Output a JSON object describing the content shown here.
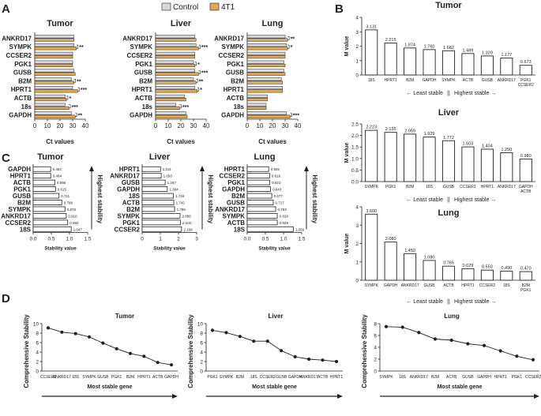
{
  "legend": {
    "items": [
      {
        "label": "Control",
        "color": "#d9d9d9"
      },
      {
        "label": "4T1",
        "color": "#e0a85c"
      }
    ]
  },
  "colors": {
    "control": "#d9d9d9",
    "t4": "#e0a85c",
    "ink": "#222222"
  },
  "panels": {
    "A": "A",
    "B": "B",
    "C": "C",
    "D": "D"
  },
  "chart_data": [
    {
      "id": "A",
      "type": "bar",
      "orientation": "horizontal",
      "genes": [
        "ANKRD17",
        "SYMPK",
        "CCSER2",
        "PGK1",
        "GUSB",
        "B2M",
        "HPRT1",
        "ACTB",
        "18s",
        "GAPDH"
      ],
      "xlabel": "Ct values",
      "xlim": [
        0,
        40
      ],
      "xticks": [
        "0",
        "10",
        "20",
        "30",
        "40"
      ],
      "subplots": [
        {
          "title": "Tumor",
          "control": [
            31,
            31,
            30,
            30,
            31,
            29,
            30,
            24,
            24,
            29
          ],
          "t4": [
            31,
            33,
            30,
            30,
            32,
            31,
            34,
            25,
            27,
            32
          ],
          "sig": [
            "",
            "**",
            "",
            "",
            "",
            "**",
            "***",
            "*",
            "***",
            "**"
          ]
        },
        {
          "title": "Liver",
          "control": [
            31,
            32,
            31,
            30,
            31,
            30,
            31,
            23,
            16,
            24
          ],
          "t4": [
            32,
            34,
            31,
            31,
            34,
            32,
            33,
            24,
            19,
            25
          ],
          "sig": [
            "",
            "***",
            "",
            "*",
            "***",
            "**",
            "*",
            "",
            "***",
            ""
          ]
        },
        {
          "title": "Lung",
          "control": [
            30,
            31,
            30,
            29,
            29,
            27,
            28,
            16,
            15,
            31
          ],
          "t4": [
            32,
            32,
            30,
            30,
            30,
            28,
            28,
            16,
            15,
            34
          ],
          "sig": [
            "**",
            "*",
            "",
            "",
            "",
            "",
            "",
            "",
            "",
            "***"
          ]
        }
      ]
    },
    {
      "id": "B",
      "type": "bar",
      "ylabel": "M value",
      "footer": {
        "left": "← Least stable",
        "sep": "||",
        "right": "Highest stable →"
      },
      "subplots": [
        {
          "title": "Tumor",
          "categories": [
            "18S",
            "HPRT1",
            "B2M",
            "GAPDH",
            "SYMPK",
            "ACTB",
            "GUSB",
            "ANKRD17",
            "PGK1\nCCSER2"
          ],
          "values": [
            3.131,
            2.215,
            1.874,
            1.76,
            1.682,
            1.489,
            1.32,
            1.177,
            0.673
          ],
          "labels": [
            "3.131",
            "2.215",
            "1.874",
            "1.760",
            "1.682",
            "1.489",
            "1.320",
            "1.177",
            "0.673"
          ],
          "ylim": [
            0,
            4
          ],
          "yticks": [
            "0",
            "1",
            "2",
            "3",
            "4"
          ]
        },
        {
          "title": "Liver",
          "categories": [
            "SYMPK",
            "PGK1",
            "B2M",
            "18S",
            "GUSB",
            "CCSER2",
            "HPRT1",
            "ANKRD17",
            "GAPDH\nACTB"
          ],
          "values": [
            2.223,
            2.135,
            2.059,
            1.929,
            1.772,
            1.503,
            1.404,
            1.25,
            0.98
          ],
          "labels": [
            "2.223",
            "2.135",
            "2.059",
            "1.929",
            "1.772",
            "1.503",
            "1.404",
            "1.250",
            "0.980"
          ],
          "ylim": [
            0,
            2.5
          ],
          "yticks": [
            "0.0",
            "0.5",
            "1.0",
            "1.5",
            "2.0",
            "2.5"
          ]
        },
        {
          "title": "Lung",
          "categories": [
            "SYMPK",
            "GAPDH",
            "ANKRD17",
            "GUSB",
            "ACTB",
            "HPRT1",
            "CCSER2",
            "18S",
            "B2M\nPGK1"
          ],
          "values": [
            3.6,
            2.08,
            1.45,
            1.08,
            0.765,
            0.629,
            0.55,
            0.49,
            0.47
          ],
          "labels": [
            "3.600",
            "2.080",
            "1.450",
            "1.080",
            "0.765",
            "0.629",
            "0.550",
            "0.490",
            "0.470"
          ],
          "ylim": [
            0,
            4
          ],
          "yticks": [
            "0",
            "1",
            "2",
            "3",
            "4"
          ]
        }
      ]
    },
    {
      "id": "C",
      "type": "bar",
      "orientation": "horizontal",
      "xlabel": "Stability value",
      "arrow_label": "Highest stability",
      "subplots": [
        {
          "title": "Tumor",
          "categories": [
            "GAPDH",
            "HPRT1",
            "ACTB",
            "PGK1",
            "GUSB",
            "B2M",
            "SYMPK",
            "ANKRD17",
            "CCSER2",
            "18S"
          ],
          "values": [
            0.482,
            0.484,
            0.595,
            0.615,
            0.711,
            0.788,
            0.876,
            0.91,
            0.95,
            1.047
          ],
          "labels": [
            "0.482",
            "0.484",
            "0.595",
            "0.615",
            "0.711",
            "0.788",
            "0.876",
            "0.910",
            "0.950",
            "1.047"
          ],
          "xlim": [
            0,
            1.5
          ],
          "xticks": [
            "0.0",
            "0.5",
            "1.0",
            "1.5"
          ]
        },
        {
          "title": "Liver",
          "categories": [
            "HPRT1",
            "ANKRD17",
            "GUSB",
            "GAPDH",
            "18S",
            "ACTB",
            "B2M",
            "SYMPK",
            "PGK1",
            "CCSER2"
          ],
          "values": [
            1.011,
            1.05,
            1.267,
            1.384,
            1.716,
            1.742,
            1.786,
            2.088,
            2.102,
            2.168
          ],
          "labels": [
            "1.011",
            "1.050",
            "1.267",
            "1.384",
            "1.716",
            "1.742",
            "1.786",
            "2.088",
            "2.102",
            "2.168"
          ],
          "xlim": [
            0,
            3
          ],
          "xticks": [
            "0",
            "1",
            "2",
            "3"
          ]
        },
        {
          "title": "Lung",
          "categories": [
            "HPRT1",
            "CCSER2",
            "PGK1",
            "GAPDH",
            "B2M",
            "GUSB",
            "ANKRD17",
            "SYMPK",
            "ACTB",
            "18S"
          ],
          "values": [
            0.592,
            0.616,
            0.621,
            0.643,
            0.677,
            0.717,
            0.783,
            0.828,
            0.829,
            1.269
          ],
          "labels": [
            "0.592",
            "0.616",
            "0.621",
            "0.643",
            "0.677",
            "0.717",
            "0.783",
            "0.828",
            "0.829",
            "1.269"
          ],
          "xlim": [
            0,
            1.5
          ],
          "xticks": [
            "0.0",
            "0.5",
            "1.0",
            "1.5"
          ]
        }
      ]
    },
    {
      "id": "D",
      "type": "line",
      "ylabel": "Comprehensive Stability",
      "xlabel": "Most stable gene",
      "subplots": [
        {
          "title": "Tumor",
          "categories": [
            "CCSER2",
            "ANKRD17",
            "18S",
            "SYMPK",
            "GUSB",
            "PGK1",
            "B2M",
            "HPRT1",
            "ACTB",
            "GAPDH"
          ],
          "values": [
            9.1,
            8.2,
            7.9,
            7.2,
            5.9,
            4.7,
            3.7,
            3.1,
            1.8,
            1.3
          ],
          "ylim": [
            0,
            10
          ],
          "yticks": [
            "0",
            "2",
            "4",
            "6",
            "8",
            "10"
          ]
        },
        {
          "title": "Liver",
          "categories": [
            "PGK1",
            "SYMPK",
            "B2M",
            "18S",
            "CCSER2",
            "GUSB",
            "GAPDH",
            "ANKRD17",
            "ACTB",
            "HPRT1"
          ],
          "values": [
            8.6,
            8.1,
            7.3,
            6.3,
            6.3,
            4.3,
            3.0,
            2.5,
            2.3,
            2.0
          ],
          "ylim": [
            0,
            10
          ],
          "yticks": [
            "0",
            "2",
            "4",
            "6",
            "8",
            "10"
          ]
        },
        {
          "title": "Lung",
          "categories": [
            "SYMPK",
            "18S",
            "ANKRD17",
            "B2M",
            "ACTB",
            "GUSB",
            "GAPDH",
            "HPRT1",
            "PGK1",
            "CCSER2"
          ],
          "values": [
            7.5,
            7.4,
            6.5,
            5.4,
            5.2,
            4.6,
            4.3,
            3.4,
            2.5,
            1.9
          ],
          "ylim": [
            0,
            8
          ],
          "yticks": [
            "0",
            "2",
            "4",
            "6",
            "8"
          ]
        }
      ]
    }
  ]
}
